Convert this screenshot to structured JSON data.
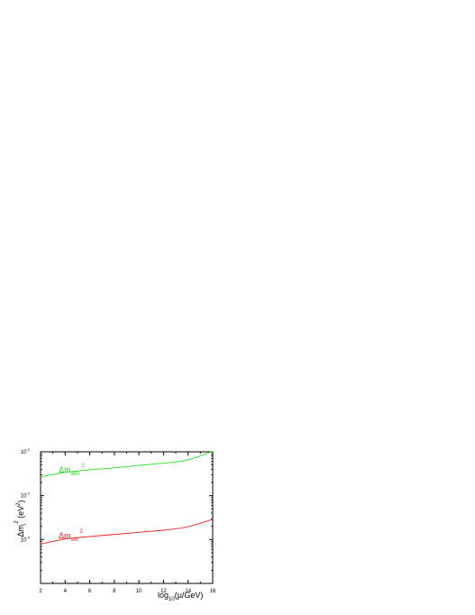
{
  "chart_data": {
    "type": "line",
    "xlabel": "log",
    "xlabel_sub": "10",
    "xlabel_tail": "(μ/GeV)",
    "ylabel": "Δm",
    "ylabel_sub": "i",
    "ylabel_sup": "2",
    "ylabel_tail": " (eV",
    "ylabel_tail_sup": "2",
    "ylabel_close": ")",
    "xlim": [
      2,
      16
    ],
    "ylim_log10": [
      -5,
      -2
    ],
    "yscale": "log",
    "x_ticks": [
      2,
      4,
      6,
      8,
      10,
      12,
      14,
      16
    ],
    "x_tick_labels": [
      "2",
      "4",
      "6",
      "8",
      "10",
      "12",
      "14",
      "16"
    ],
    "y_ticks": [
      {
        "base": "10",
        "exp": "-2",
        "value": 0.01
      },
      {
        "base": "10",
        "exp": "-3",
        "value": 0.001
      },
      {
        "base": "10",
        "exp": "-4",
        "value": 0.0001
      }
    ],
    "grid": false,
    "series": [
      {
        "name": "Δm",
        "name_sub": "atm",
        "name_sup": "2",
        "color": "#22dd22",
        "x": [
          2,
          4,
          6,
          8,
          10,
          12,
          13.5,
          14.5,
          16
        ],
        "y": [
          0.0027,
          0.0034,
          0.0039,
          0.0043,
          0.0049,
          0.0055,
          0.0061,
          0.0072,
          0.0103
        ]
      },
      {
        "name": "Δm",
        "name_sub": "sol",
        "name_sup": "2",
        "color": "#ee2222",
        "x": [
          2,
          4,
          6,
          8,
          10,
          12,
          13.5,
          14.5,
          16
        ],
        "y": [
          7.9e-05,
          0.000104,
          0.000117,
          0.000131,
          0.000146,
          0.000163,
          0.000183,
          0.000213,
          0.000289
        ]
      }
    ]
  }
}
